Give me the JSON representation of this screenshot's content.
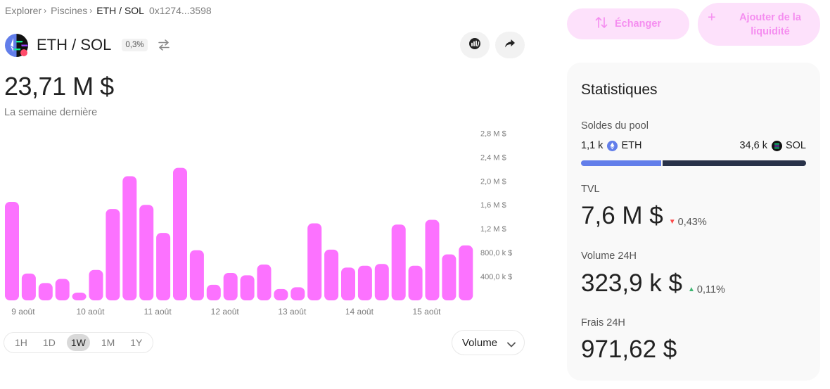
{
  "breadcrumb": {
    "explorer": "Explorer",
    "pools": "Piscines",
    "current": "ETH / SOL",
    "address": "0x1274...3598",
    "separator": "›"
  },
  "pair": {
    "name": "ETH / SOL",
    "fee": "0,3%"
  },
  "summary": {
    "value": "23,71 M $",
    "period": "La semaine dernière"
  },
  "actions": {
    "swap_label": "Échanger",
    "add_liquidity_label": "Ajouter de la liquidité"
  },
  "ranges": {
    "items": [
      "1H",
      "1D",
      "1W",
      "1M",
      "1Y"
    ],
    "active": "1W"
  },
  "metric_select": {
    "value": "Volume"
  },
  "stats": {
    "title": "Statistiques",
    "balances_label": "Soldes du pool",
    "eth_amount": "1,1 k",
    "eth_symbol": "ETH",
    "sol_amount": "34,6 k",
    "sol_symbol": "SOL",
    "eth_share": 0.36,
    "tvl_label": "TVL",
    "tvl_value": "7,6 M $",
    "tvl_delta": "0,43%",
    "tvl_direction": "down",
    "volume_label": "Volume 24H",
    "volume_value": "323,9 k $",
    "volume_delta": "0,11%",
    "volume_direction": "up",
    "fees_label": "Frais 24H",
    "fees_value": "971,62 $"
  },
  "colors": {
    "accent": "#fc72ff",
    "accent_soft": "#fde1fb",
    "eth": "#627eea",
    "sol": "#293249",
    "down": "#fc4a4a",
    "up": "#3fb672"
  },
  "chart_data": {
    "type": "bar",
    "title": "",
    "xlabel": "",
    "ylabel": "",
    "ylim": [
      0,
      2900000
    ],
    "grid": false,
    "y_ticks": [
      {
        "value": 400000,
        "label": "400,0 k $"
      },
      {
        "value": 800000,
        "label": "800,0 k $"
      },
      {
        "value": 1200000,
        "label": "1,2 M $"
      },
      {
        "value": 1600000,
        "label": "1,6 M $"
      },
      {
        "value": 2000000,
        "label": "2,0 M $"
      },
      {
        "value": 2400000,
        "label": "2,4 M $"
      },
      {
        "value": 2800000,
        "label": "2,8 M $"
      }
    ],
    "x_ticks": [
      {
        "index": 1,
        "label": "9 août"
      },
      {
        "index": 5,
        "label": "10 août"
      },
      {
        "index": 9,
        "label": "11 août"
      },
      {
        "index": 13,
        "label": "12 août"
      },
      {
        "index": 17,
        "label": "13 août"
      },
      {
        "index": 21,
        "label": "14 août"
      },
      {
        "index": 25,
        "label": "15 août"
      }
    ],
    "values": [
      1650000,
      450000,
      290000,
      360000,
      130000,
      510000,
      1530000,
      2080000,
      1600000,
      1130000,
      2220000,
      840000,
      260000,
      460000,
      420000,
      600000,
      190000,
      220000,
      1290000,
      850000,
      550000,
      580000,
      610000,
      1270000,
      580000,
      1350000,
      770000,
      920000
    ]
  }
}
